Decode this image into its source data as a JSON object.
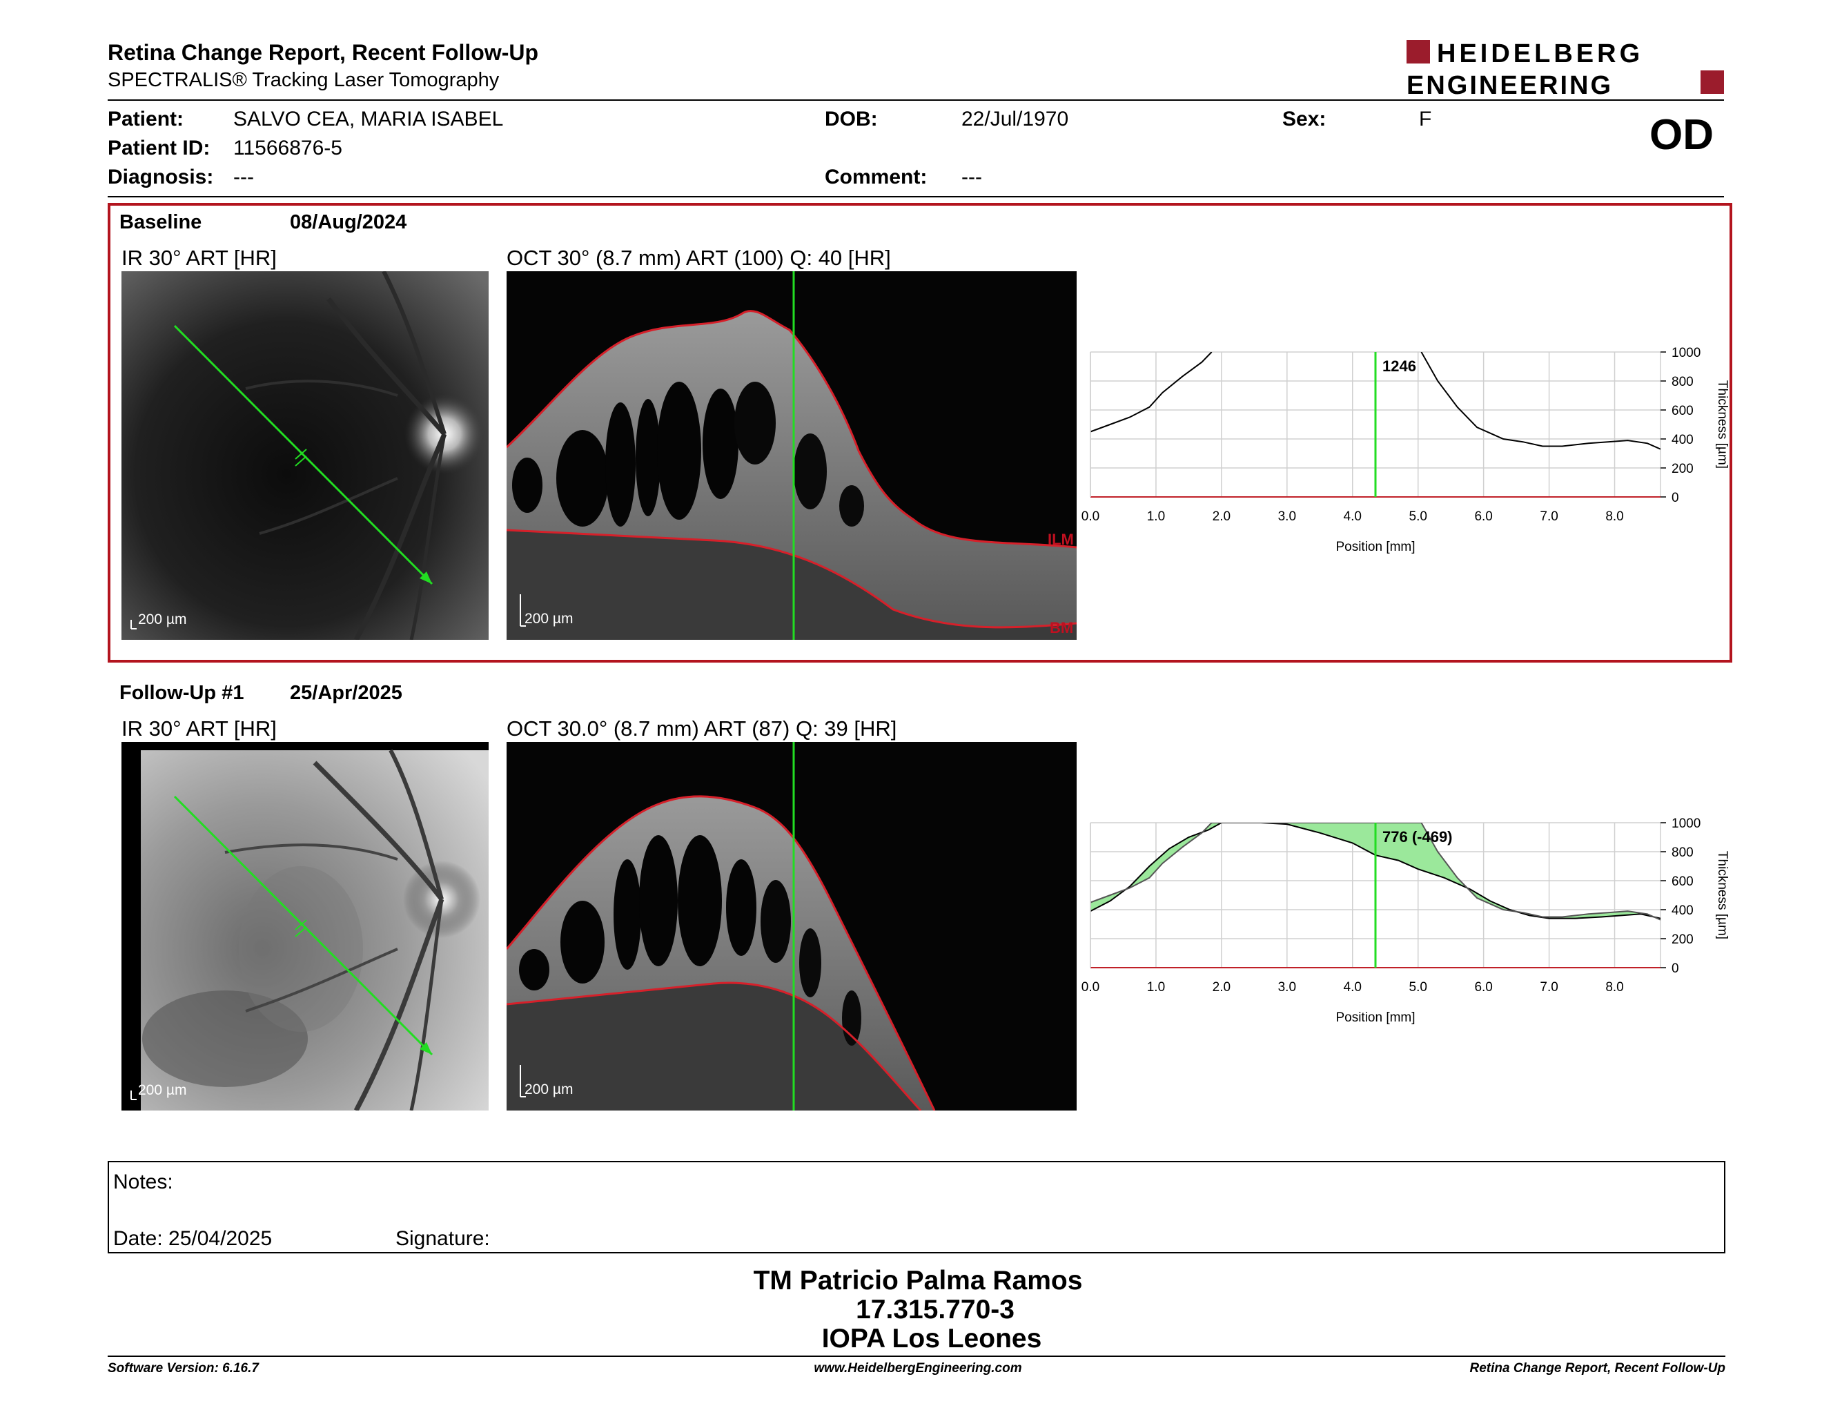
{
  "header": {
    "title": "Retina Change Report, Recent Follow-Up",
    "subtitle": "SPECTRALIS® Tracking Laser Tomography",
    "logo_line1": "HEIDELBERG",
    "logo_line2": "ENGINEERING",
    "eye": "OD"
  },
  "patient": {
    "patient_label": "Patient:",
    "patient_value": "SALVO CEA,  MARIA ISABEL",
    "dob_label": "DOB:",
    "dob_value": "22/Jul/1970",
    "sex_label": "Sex:",
    "sex_value": "F",
    "id_label": "Patient ID:",
    "id_value": "11566876-5",
    "diagnosis_label": "Diagnosis:",
    "diagnosis_value": "---",
    "comment_label": "Comment:",
    "comment_value": "---"
  },
  "baseline": {
    "label": "Baseline",
    "date": "08/Aug/2024",
    "ir_title": "IR 30° ART [HR]",
    "oct_title": "OCT 30° (8.7 mm) ART (100) Q: 40 [HR]",
    "ir_scale": "200 µm",
    "oct_scale": "200 µm",
    "ilm_label": "ILM",
    "bm_label": "BM"
  },
  "followup": {
    "label": "Follow-Up #1",
    "date": "25/Apr/2025",
    "ir_title": "IR 30° ART [HR]",
    "oct_title": "OCT 30.0° (8.7 mm) ART (87) Q: 39 [HR]",
    "ir_scale": "200 µm",
    "oct_scale": "200 µm"
  },
  "chart_data": [
    {
      "type": "line",
      "xlabel": "Position [mm]",
      "ylabel": "Thickness [µm]",
      "xlim": [
        0,
        8.7
      ],
      "ylim": [
        0,
        1000
      ],
      "xticks": [
        "0.0",
        "1.0",
        "2.0",
        "3.0",
        "4.0",
        "5.0",
        "6.0",
        "7.0",
        "8.0"
      ],
      "yticks": [
        "0",
        "200",
        "400",
        "600",
        "800",
        "1000"
      ],
      "grid": true,
      "marker_x": 4.35,
      "marker_label": "1246",
      "series": [
        {
          "x": [
            0,
            0.3,
            0.6,
            0.9,
            1.1,
            1.4,
            1.7,
            1.85
          ],
          "y": [
            450,
            500,
            550,
            620,
            720,
            830,
            930,
            1000
          ]
        },
        {
          "x": [
            5.05,
            5.3,
            5.6,
            5.9,
            6.1,
            6.3,
            6.6,
            6.9,
            7.2,
            7.6,
            7.9,
            8.2,
            8.5,
            8.7
          ],
          "y": [
            1000,
            800,
            620,
            480,
            440,
            400,
            380,
            350,
            350,
            370,
            380,
            390,
            370,
            330
          ]
        }
      ]
    },
    {
      "type": "area",
      "xlabel": "Position [mm]",
      "ylabel": "Thickness [µm]",
      "xlim": [
        0,
        8.7
      ],
      "ylim": [
        0,
        1000
      ],
      "xticks": [
        "0.0",
        "1.0",
        "2.0",
        "3.0",
        "4.0",
        "5.0",
        "6.0",
        "7.0",
        "8.0"
      ],
      "yticks": [
        "0",
        "200",
        "400",
        "600",
        "800",
        "1000"
      ],
      "grid": true,
      "marker_x": 4.35,
      "marker_label": "776 (-469)",
      "series": [
        {
          "x": [
            0,
            0.3,
            0.6,
            0.9,
            1.2,
            1.5,
            1.8,
            2.0,
            2.3,
            2.6,
            3.0,
            3.5,
            4.0,
            4.35,
            4.7,
            5.0,
            5.4,
            5.8,
            6.1,
            6.4,
            6.7,
            7.0,
            7.4,
            7.8,
            8.1,
            8.4,
            8.7
          ],
          "y": [
            390,
            460,
            560,
            700,
            820,
            900,
            950,
            1000,
            1000,
            1000,
            990,
            930,
            860,
            776,
            740,
            680,
            620,
            540,
            460,
            400,
            360,
            340,
            340,
            350,
            360,
            370,
            340
          ]
        },
        {
          "x": [
            0,
            0.3,
            0.6,
            0.9,
            1.1,
            1.4,
            1.7,
            1.85,
            2.0,
            5.05,
            5.3,
            5.6,
            5.9,
            6.1,
            6.3,
            6.6,
            6.9,
            7.2,
            7.6,
            7.9,
            8.2,
            8.5,
            8.7
          ],
          "y": [
            450,
            500,
            550,
            620,
            720,
            830,
            930,
            1000,
            1000,
            1000,
            800,
            620,
            480,
            440,
            400,
            380,
            350,
            350,
            370,
            380,
            390,
            370,
            330
          ]
        }
      ]
    }
  ],
  "notes": {
    "notes_label": "Notes:",
    "date_label": "Date: 25/04/2025",
    "signature_label": "Signature:"
  },
  "signer": {
    "name": "TM Patricio Palma Ramos",
    "id": "17.315.770-3",
    "institution": "IOPA Los Leones"
  },
  "footer": {
    "left": "Software Version: 6.16.7",
    "center": "www.HeidelbergEngineering.com",
    "right": "Retina Change Report, Recent Follow-Up"
  },
  "colors": {
    "frame_red": "#b3141e",
    "scan_green": "#22dd22",
    "boundary_red": "#d6202a",
    "diff_fill": "#9be89b"
  }
}
